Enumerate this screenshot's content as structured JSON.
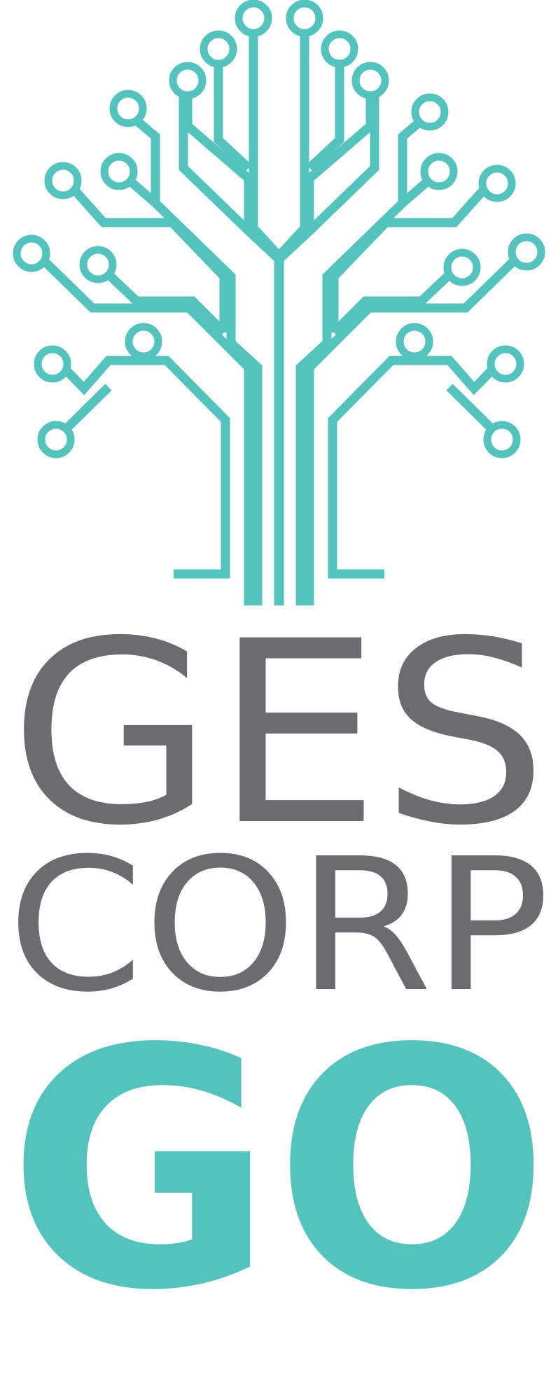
{
  "logo": {
    "line1": "GES",
    "line2": "CORP",
    "line3": "GO",
    "tree_icon": "circuit-tree-icon"
  },
  "colors": {
    "teal": "#55c3bd",
    "gray": "#6c6c70",
    "background": "#ffffff"
  }
}
